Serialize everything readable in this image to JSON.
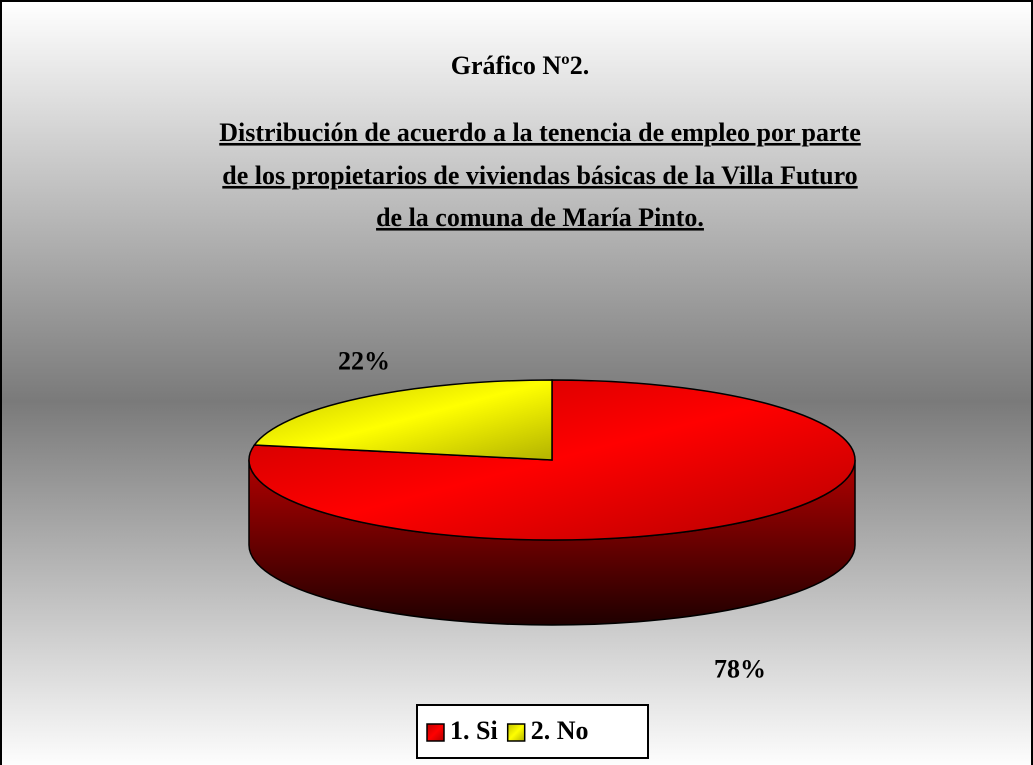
{
  "chart_data": {
    "type": "pie",
    "title": "Gráfico Nº2.",
    "subtitle": [
      "Distribución de acuerdo a la tenencia de empleo por parte",
      "de los propietarios de viviendas básicas de la Villa Futuro",
      "de la comuna de María Pinto."
    ],
    "categories": [
      "1. Si",
      "2. No"
    ],
    "values": [
      78,
      22
    ],
    "value_labels": [
      "78%",
      "22%"
    ],
    "colors": [
      "#ff0000",
      "#ffff00"
    ],
    "legend": "bottom"
  }
}
